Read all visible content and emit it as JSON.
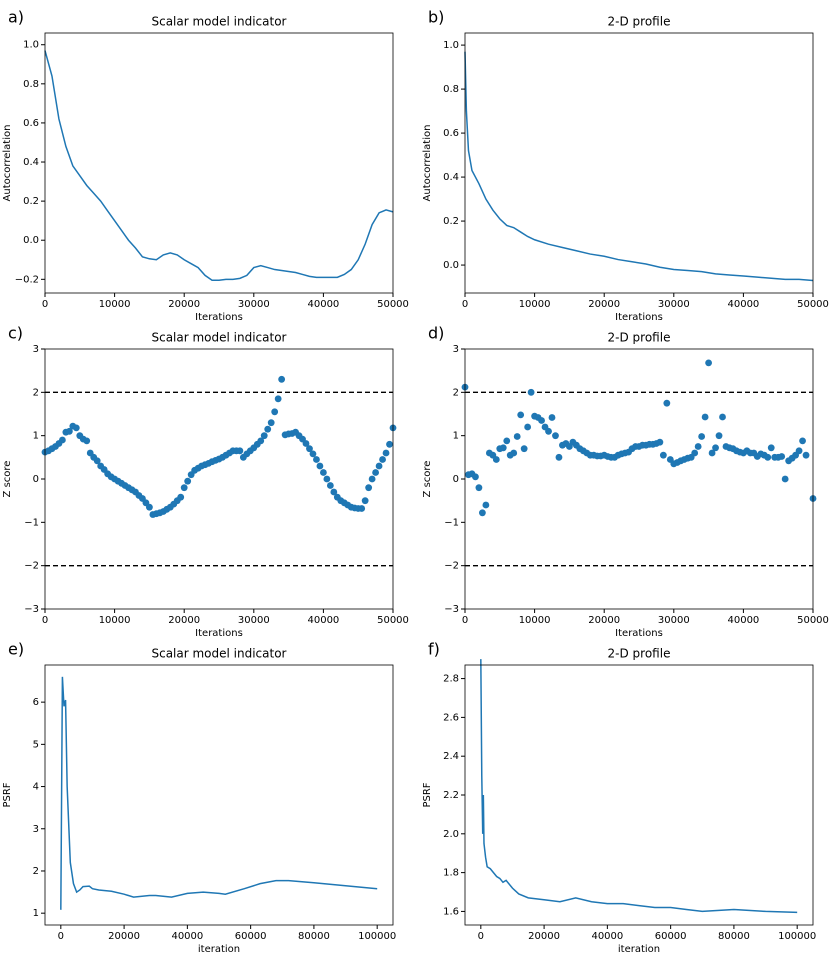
{
  "chart_data": [
    {
      "type": "line",
      "label": "a)",
      "title": "Scalar model indicator",
      "xlabel": "Iterations",
      "ylabel": "Autocorrelation",
      "color": "#1f77b4",
      "x": [
        0,
        1000,
        2000,
        3000,
        4000,
        5000,
        6000,
        7000,
        8000,
        9000,
        10000,
        11000,
        12000,
        13000,
        14000,
        15000,
        16000,
        17000,
        18000,
        19000,
        20000,
        21000,
        22000,
        23000,
        24000,
        25000,
        26000,
        27000,
        28000,
        29000,
        30000,
        31000,
        32000,
        33000,
        34000,
        35000,
        36000,
        37000,
        38000,
        39000,
        40000,
        41000,
        42000,
        43000,
        44000,
        45000,
        46000,
        47000,
        48000,
        49000,
        50000
      ],
      "values": [
        0.97,
        0.84,
        0.62,
        0.48,
        0.38,
        0.33,
        0.28,
        0.24,
        0.2,
        0.15,
        0.1,
        0.05,
        0,
        -0.04,
        -0.085,
        -0.095,
        -0.1,
        -0.075,
        -0.065,
        -0.075,
        -0.1,
        -0.12,
        -0.14,
        -0.18,
        -0.205,
        -0.205,
        -0.2,
        -0.2,
        -0.195,
        -0.18,
        -0.14,
        -0.13,
        -0.14,
        -0.15,
        -0.155,
        -0.16,
        -0.165,
        -0.175,
        -0.185,
        -0.19,
        -0.19,
        -0.19,
        -0.19,
        -0.175,
        -0.15,
        -0.1,
        -0.02,
        0.08,
        0.14,
        0.155,
        0.145
      ],
      "xlim": [
        0,
        50000
      ],
      "ylim": [
        -0.27,
        1.06
      ],
      "xticks": [
        0,
        10000,
        20000,
        30000,
        40000,
        50000
      ],
      "yticks": [
        {
          "value": -0.2,
          "label": "−0.2"
        },
        {
          "value": 0,
          "label": "0.0"
        },
        0.2,
        0.4,
        0.6,
        0.8,
        {
          "value": 1,
          "label": "1.0"
        }
      ]
    },
    {
      "type": "line",
      "label": "b)",
      "title": "2-D profile",
      "xlabel": "Iterations",
      "ylabel": "Autocorrelation",
      "color": "#1f77b4",
      "x": [
        0,
        200,
        500,
        1000,
        2000,
        3000,
        4000,
        5000,
        6000,
        7000,
        8000,
        9000,
        10000,
        12000,
        14000,
        16000,
        18000,
        20000,
        22000,
        24000,
        26000,
        28000,
        30000,
        32000,
        34000,
        36000,
        38000,
        40000,
        42000,
        44000,
        46000,
        48000,
        50000
      ],
      "values": [
        0.97,
        0.7,
        0.52,
        0.43,
        0.37,
        0.3,
        0.25,
        0.21,
        0.18,
        0.17,
        0.15,
        0.13,
        0.115,
        0.095,
        0.08,
        0.065,
        0.05,
        0.04,
        0.025,
        0.015,
        0.005,
        -0.01,
        -0.02,
        -0.025,
        -0.03,
        -0.04,
        -0.045,
        -0.05,
        -0.055,
        -0.06,
        -0.065,
        -0.065,
        -0.07
      ],
      "xlim": [
        0,
        50000
      ],
      "ylim": [
        -0.127,
        1.055
      ],
      "xticks": [
        0,
        10000,
        20000,
        30000,
        40000,
        50000
      ],
      "yticks": [
        {
          "value": 0,
          "label": "0.0"
        },
        0.2,
        0.4,
        0.6,
        0.8,
        {
          "value": 1,
          "label": "1.0"
        }
      ]
    },
    {
      "type": "scatter",
      "label": "c)",
      "title": "Scalar model indicator",
      "xlabel": "Iterations",
      "ylabel": "Z score",
      "color": "#1f77b4",
      "x": [
        0,
        500,
        1000,
        1500,
        2000,
        2500,
        3000,
        3500,
        4000,
        4500,
        5000,
        5500,
        6000,
        6500,
        7000,
        7500,
        8000,
        8500,
        9000,
        9500,
        10000,
        10500,
        11000,
        11500,
        12000,
        12500,
        13000,
        13500,
        14000,
        14500,
        15000,
        15500,
        16000,
        16500,
        17000,
        17500,
        18000,
        18500,
        19000,
        19500,
        20000,
        20500,
        21000,
        21500,
        22000,
        22500,
        23000,
        23500,
        24000,
        24500,
        25000,
        25500,
        26000,
        26500,
        27000,
        27500,
        28000,
        28500,
        29000,
        29500,
        30000,
        30500,
        31000,
        31500,
        32000,
        32500,
        33000,
        33500,
        34000,
        34500,
        35000,
        35500,
        36000,
        36500,
        37000,
        37500,
        38000,
        38500,
        39000,
        39500,
        40000,
        40500,
        41000,
        41500,
        42000,
        42500,
        43000,
        43500,
        44000,
        44500,
        45000,
        45500,
        46000,
        46500,
        47000,
        47500,
        48000,
        48500,
        49000,
        49500,
        50000
      ],
      "values": [
        0.62,
        0.65,
        0.7,
        0.75,
        0.82,
        0.9,
        1.08,
        1.1,
        1.22,
        1.18,
        1.0,
        0.92,
        0.88,
        0.6,
        0.5,
        0.42,
        0.3,
        0.22,
        0.12,
        0.05,
        0,
        -0.05,
        -0.1,
        -0.15,
        -0.2,
        -0.25,
        -0.3,
        -0.38,
        -0.45,
        -0.55,
        -0.65,
        -0.82,
        -0.8,
        -0.78,
        -0.75,
        -0.7,
        -0.65,
        -0.58,
        -0.5,
        -0.42,
        -0.2,
        -0.05,
        0.1,
        0.2,
        0.25,
        0.3,
        0.33,
        0.36,
        0.4,
        0.43,
        0.46,
        0.5,
        0.55,
        0.6,
        0.65,
        0.65,
        0.65,
        0.5,
        0.58,
        0.65,
        0.72,
        0.8,
        0.88,
        1.0,
        1.15,
        1.3,
        1.55,
        1.85,
        2.3,
        1.02,
        1.04,
        1.05,
        1.08,
        1.0,
        0.92,
        0.82,
        0.7,
        0.58,
        0.45,
        0.3,
        0.15,
        0,
        -0.15,
        -0.3,
        -0.42,
        -0.5,
        -0.55,
        -0.6,
        -0.65,
        -0.67,
        -0.68,
        -0.68,
        -0.5,
        -0.2,
        0,
        0.15,
        0.3,
        0.45,
        0.6,
        0.8,
        1.18
      ],
      "hlines": [
        2,
        -2
      ],
      "xlim": [
        0,
        50000
      ],
      "ylim": [
        -3,
        3
      ],
      "xticks": [
        0,
        10000,
        20000,
        30000,
        40000,
        50000
      ],
      "yticks": [
        {
          "value": -3,
          "label": "−3"
        },
        {
          "value": -2,
          "label": "−2"
        },
        {
          "value": -1,
          "label": "−1"
        },
        0,
        1,
        2,
        3
      ]
    },
    {
      "type": "scatter",
      "label": "d)",
      "title": "2-D profile",
      "xlabel": "Iterations",
      "ylabel": "Z score",
      "color": "#1f77b4",
      "x": [
        0,
        500,
        1000,
        1500,
        2000,
        2500,
        3000,
        3500,
        4000,
        4500,
        5000,
        5500,
        6000,
        6500,
        7000,
        7500,
        8000,
        8500,
        9000,
        9500,
        10000,
        10500,
        11000,
        11500,
        12000,
        12500,
        13000,
        13500,
        14000,
        14500,
        15000,
        15500,
        16000,
        16500,
        17000,
        17500,
        18000,
        18500,
        19000,
        19500,
        20000,
        20500,
        21000,
        21500,
        22000,
        22500,
        23000,
        23500,
        24000,
        24500,
        25000,
        25500,
        26000,
        26500,
        27000,
        27500,
        28000,
        28500,
        29000,
        29500,
        30000,
        30500,
        31000,
        31500,
        32000,
        32500,
        33000,
        33500,
        34000,
        34500,
        35000,
        35500,
        36000,
        36500,
        37000,
        37500,
        38000,
        38500,
        39000,
        39500,
        40000,
        40500,
        41000,
        41500,
        42000,
        42500,
        43000,
        43500,
        44000,
        44500,
        45000,
        45500,
        46000,
        46500,
        47000,
        47500,
        48000,
        48500,
        49000,
        50000
      ],
      "values": [
        2.12,
        0.1,
        0.12,
        0.05,
        -0.2,
        -0.78,
        -0.6,
        0.6,
        0.55,
        0.45,
        0.7,
        0.72,
        0.88,
        0.55,
        0.6,
        0.98,
        1.48,
        0.7,
        1.2,
        2.0,
        1.45,
        1.42,
        1.35,
        1.2,
        1.1,
        1.42,
        1.0,
        0.5,
        0.78,
        0.82,
        0.75,
        0.85,
        0.78,
        0.7,
        0.65,
        0.6,
        0.55,
        0.55,
        0.53,
        0.53,
        0.55,
        0.52,
        0.5,
        0.5,
        0.55,
        0.58,
        0.6,
        0.62,
        0.7,
        0.75,
        0.75,
        0.78,
        0.78,
        0.8,
        0.8,
        0.82,
        0.85,
        0.55,
        1.75,
        0.45,
        0.35,
        0.38,
        0.42,
        0.45,
        0.48,
        0.5,
        0.6,
        0.75,
        0.98,
        1.43,
        2.68,
        0.6,
        0.72,
        1.0,
        1.43,
        0.75,
        0.72,
        0.7,
        0.65,
        0.62,
        0.6,
        0.65,
        0.6,
        0.6,
        0.52,
        0.58,
        0.55,
        0.5,
        0.72,
        0.5,
        0.5,
        0.52,
        0,
        0.42,
        0.48,
        0.55,
        0.65,
        0.88,
        0.55,
        -0.45
      ],
      "hlines": [
        2,
        -2
      ],
      "xlim": [
        0,
        50000
      ],
      "ylim": [
        -3,
        3
      ],
      "xticks": [
        0,
        10000,
        20000,
        30000,
        40000,
        50000
      ],
      "yticks": [
        {
          "value": -3,
          "label": "−3"
        },
        {
          "value": -2,
          "label": "−2"
        },
        {
          "value": -1,
          "label": "−1"
        },
        0,
        1,
        2,
        3
      ]
    },
    {
      "type": "line",
      "label": "e)",
      "title": "Scalar model indicator",
      "xlabel": "iteration",
      "ylabel": "PSRF",
      "color": "#1f77b4",
      "x": [
        0,
        500,
        1000,
        1500,
        2000,
        3000,
        4000,
        5000,
        6000,
        7000,
        9000,
        10000,
        12000,
        16000,
        20000,
        23000,
        28000,
        30000,
        35000,
        40000,
        45000,
        50000,
        52000,
        58000,
        63000,
        68000,
        72000,
        80000,
        90000,
        100000
      ],
      "values": [
        1.08,
        6.6,
        5.9,
        6.05,
        4,
        2.2,
        1.7,
        1.5,
        1.55,
        1.63,
        1.64,
        1.58,
        1.55,
        1.52,
        1.45,
        1.38,
        1.42,
        1.42,
        1.38,
        1.47,
        1.5,
        1.47,
        1.45,
        1.58,
        1.7,
        1.77,
        1.77,
        1.72,
        1.65,
        1.58
      ],
      "xlim": [
        -5000,
        105000
      ],
      "ylim": [
        0.72,
        6.88
      ],
      "xticks": [
        0,
        20000,
        40000,
        60000,
        80000,
        100000
      ],
      "yticks": [
        1,
        2,
        3,
        4,
        5,
        6
      ]
    },
    {
      "type": "line",
      "label": "f)",
      "title": "2-D profile",
      "xlabel": "iteration",
      "ylabel": "PSRF",
      "color": "#1f77b4",
      "x": [
        0,
        300,
        600,
        800,
        1000,
        1500,
        2000,
        3000,
        4000,
        5000,
        6000,
        7000,
        8000,
        10000,
        12000,
        15000,
        20000,
        25000,
        30000,
        35000,
        40000,
        45000,
        50000,
        55000,
        60000,
        65000,
        70000,
        80000,
        90000,
        100000
      ],
      "values": [
        2.9,
        2.3,
        2.0,
        2.2,
        1.95,
        1.88,
        1.83,
        1.82,
        1.8,
        1.78,
        1.77,
        1.75,
        1.76,
        1.72,
        1.69,
        1.67,
        1.66,
        1.65,
        1.67,
        1.65,
        1.64,
        1.64,
        1.63,
        1.62,
        1.62,
        1.61,
        1.6,
        1.61,
        1.6,
        1.595
      ],
      "xlim": [
        -5000,
        105000
      ],
      "ylim": [
        1.53,
        2.87
      ],
      "xticks": [
        0,
        20000,
        40000,
        60000,
        80000,
        100000
      ],
      "yticks": [
        1.6,
        1.8,
        {
          "value": 2,
          "label": "2.0"
        },
        2.2,
        2.4,
        2.6,
        2.8
      ]
    }
  ]
}
